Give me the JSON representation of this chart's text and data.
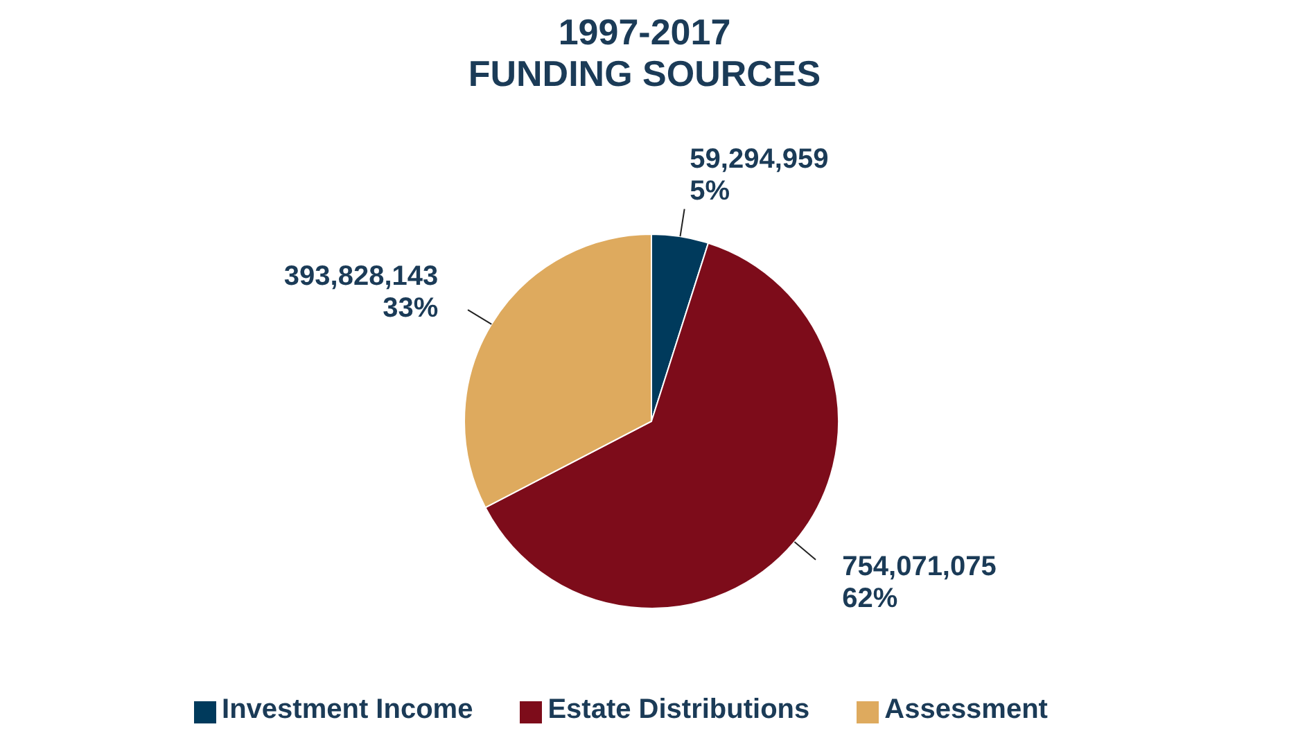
{
  "chart_data": {
    "type": "pie",
    "title": "1997-2017",
    "subtitle": "FUNDING SOURCES",
    "categories": [
      "Investment Income",
      "Estate Distributions",
      "Assessment"
    ],
    "values": [
      59294959,
      754071075,
      393828143
    ],
    "value_labels": [
      "59,294,959\n5%",
      "754,071,075\n62%",
      "393,828,143\n33%"
    ],
    "colors": [
      "#003a5c",
      "#7d0c1a",
      "#deaa5e"
    ],
    "legend": "bottom"
  }
}
